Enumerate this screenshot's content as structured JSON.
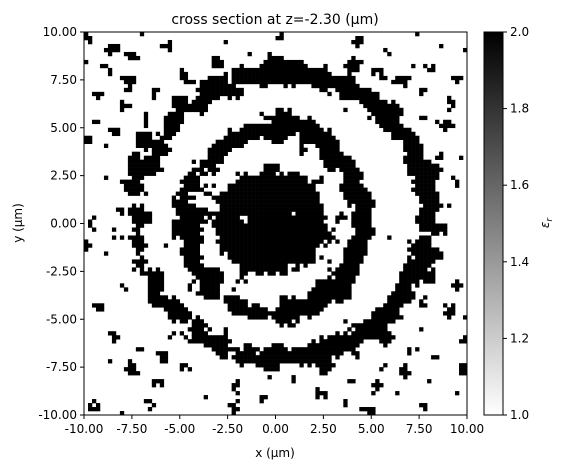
{
  "chart_data": {
    "type": "heatmap",
    "title": "cross section at z=-2.30 (μm)",
    "xlabel": "x (μm)",
    "ylabel": "y (μm)",
    "xlim": [
      -10,
      10
    ],
    "ylim": [
      -10,
      10
    ],
    "x_ticks": [
      {
        "value": -10,
        "label": "-10.00"
      },
      {
        "value": -7.5,
        "label": "-7.50"
      },
      {
        "value": -5,
        "label": "-5.00"
      },
      {
        "value": -2.5,
        "label": "-2.50"
      },
      {
        "value": 0,
        "label": "0.00"
      },
      {
        "value": 2.5,
        "label": "2.50"
      },
      {
        "value": 5,
        "label": "5.00"
      },
      {
        "value": 7.5,
        "label": "7.50"
      },
      {
        "value": 10,
        "label": "10.00"
      }
    ],
    "y_ticks": [
      {
        "value": 10,
        "label": "10.00"
      },
      {
        "value": 7.5,
        "label": "7.50"
      },
      {
        "value": 5,
        "label": "5.00"
      },
      {
        "value": 2.5,
        "label": "2.50"
      },
      {
        "value": 0,
        "label": "0.00"
      },
      {
        "value": -2.5,
        "label": "-2.50"
      },
      {
        "value": -5,
        "label": "-5.00"
      },
      {
        "value": -7.5,
        "label": "-7.50"
      },
      {
        "value": -10,
        "label": "-10.00"
      }
    ],
    "colorbar": {
      "label": "ε",
      "label_subscript": "r",
      "range": [
        1.0,
        2.0
      ],
      "colormap": "greys",
      "low_color": "#ffffff",
      "high_color": "#000000",
      "ticks": [
        {
          "value": 1.0,
          "label": "1.0"
        },
        {
          "value": 1.2,
          "label": "1.2"
        },
        {
          "value": 1.4,
          "label": "1.4"
        },
        {
          "value": 1.6,
          "label": "1.6"
        },
        {
          "value": 1.8,
          "label": "1.8"
        },
        {
          "value": 2.0,
          "label": "2.0"
        }
      ]
    },
    "values_description_only": true,
    "field": {
      "values": [
        1.0,
        2.0
      ],
      "structure": "binary permittivity map: concentric elliptical dark rings around a dense dark center, dotted speckle near edges",
      "rings": [
        {
          "rx": 2.2,
          "ry": 2.0,
          "cx": -0.3,
          "cy": 0.0
        },
        {
          "rx": 4.6,
          "ry": 4.9,
          "cx": 0.0,
          "cy": 0.2
        },
        {
          "rx": 7.6,
          "ry": 7.4,
          "cx": 0.3,
          "cy": 0.4
        }
      ]
    }
  }
}
